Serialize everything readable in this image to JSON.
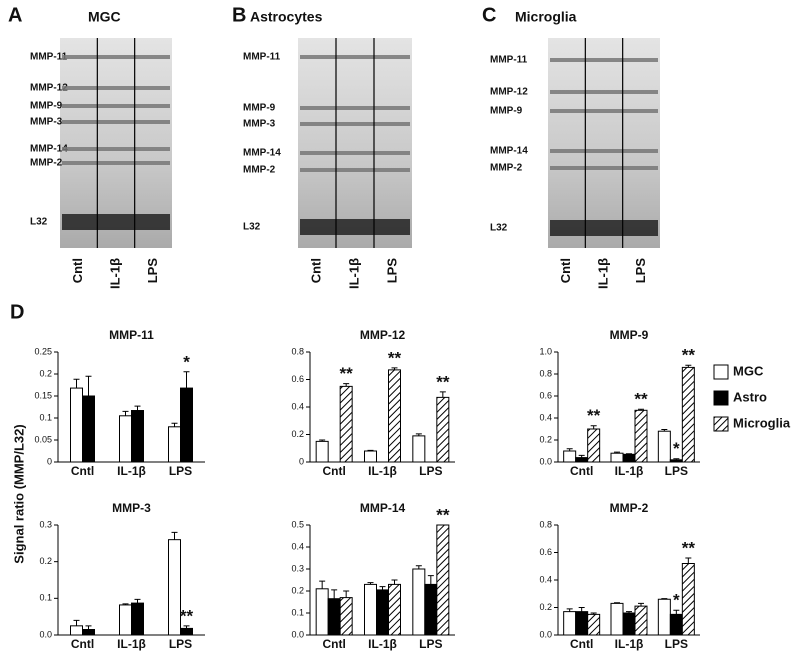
{
  "figure_label": "D",
  "y_axis_label": "Signal ratio (MMP/L32)",
  "gels": [
    {
      "letter": "A",
      "title": "MGC",
      "bands": [
        "MMP-11",
        "MMP-12",
        "MMP-9",
        "MMP-3",
        "MMP-14",
        "MMP-2",
        "L32"
      ],
      "lanes": [
        "Cntl",
        "IL-1β",
        "LPS"
      ]
    },
    {
      "letter": "B",
      "title": "Astrocytes",
      "bands": [
        "MMP-11",
        "MMP-9",
        "MMP-3",
        "MMP-14",
        "MMP-2",
        "L32"
      ],
      "lanes": [
        "Cntl",
        "IL-1β",
        "LPS"
      ]
    },
    {
      "letter": "C",
      "title": "Microglia",
      "bands": [
        "MMP-11",
        "MMP-12",
        "MMP-9",
        "MMP-14",
        "MMP-2",
        "L32"
      ],
      "lanes": [
        "Cntl",
        "IL-1β",
        "LPS"
      ]
    }
  ],
  "chart_data": [
    {
      "type": "bar",
      "title": "MMP-11",
      "categories": [
        "Cntl",
        "IL-1β",
        "LPS"
      ],
      "ylim": [
        0,
        0.25
      ],
      "yticks": [
        0,
        0.05,
        0.1,
        0.15,
        0.2,
        0.25
      ],
      "series": [
        {
          "name": "MGC",
          "color": "#ffffff",
          "values": [
            0.168,
            0.105,
            0.08
          ],
          "errors": [
            0.02,
            0.01,
            0.008
          ],
          "significance": [
            null,
            null,
            null
          ]
        },
        {
          "name": "Astro",
          "color": "#000000",
          "values": [
            0.15,
            0.117,
            0.168
          ],
          "errors": [
            0.045,
            0.01,
            0.037
          ],
          "significance": [
            null,
            null,
            "*"
          ]
        }
      ]
    },
    {
      "type": "bar",
      "title": "MMP-12",
      "categories": [
        "Cntl",
        "IL-1β",
        "LPS"
      ],
      "ylim": [
        0,
        0.8
      ],
      "yticks": [
        0,
        0.2,
        0.4,
        0.6,
        0.8
      ],
      "series": [
        {
          "name": "MGC",
          "color": "#ffffff",
          "values": [
            0.15,
            0.08,
            0.19
          ],
          "errors": [
            0.01,
            0.005,
            0.015
          ],
          "significance": [
            null,
            null,
            null
          ]
        },
        {
          "name": "Astro",
          "color": "#000000",
          "values": [
            0,
            0,
            0
          ],
          "errors": [
            0,
            0,
            0
          ],
          "significance": [
            null,
            null,
            null
          ]
        },
        {
          "name": "Microglia",
          "color": "#ffffff",
          "pattern": "hatch",
          "values": [
            0.55,
            0.67,
            0.47
          ],
          "errors": [
            0.02,
            0.015,
            0.04
          ],
          "significance": [
            "**",
            "**",
            "**"
          ]
        }
      ]
    },
    {
      "type": "bar",
      "title": "MMP-9",
      "categories": [
        "Cntl",
        "IL-1β",
        "LPS"
      ],
      "ylim": [
        0,
        1.0
      ],
      "yticks": [
        {
          "value": 0,
          "label": "0.0"
        },
        0.2,
        0.4,
        0.6,
        0.8,
        {
          "value": 1,
          "label": "1.0"
        }
      ],
      "legend": "right",
      "series": [
        {
          "name": "MGC",
          "color": "#ffffff",
          "values": [
            0.1,
            0.08,
            0.28
          ],
          "errors": [
            0.02,
            0.01,
            0.015
          ],
          "significance": [
            null,
            null,
            null
          ]
        },
        {
          "name": "Astro",
          "color": "#000000",
          "values": [
            0.04,
            0.07,
            0.02
          ],
          "errors": [
            0.02,
            0.005,
            0.01
          ],
          "significance": [
            null,
            null,
            "*"
          ]
        },
        {
          "name": "Microglia",
          "color": "#ffffff",
          "pattern": "hatch",
          "values": [
            0.3,
            0.47,
            0.86
          ],
          "errors": [
            0.03,
            0.01,
            0.02
          ],
          "significance": [
            "**",
            "**",
            "**"
          ]
        }
      ]
    },
    {
      "type": "bar",
      "title": "MMP-3",
      "categories": [
        "Cntl",
        "IL-1β",
        "LPS"
      ],
      "ylim": [
        0,
        0.3
      ],
      "yticks": [
        {
          "value": 0,
          "label": "0.0"
        },
        0.1,
        0.2,
        0.3
      ],
      "series": [
        {
          "name": "MGC",
          "color": "#ffffff",
          "values": [
            0.025,
            0.082,
            0.26
          ],
          "errors": [
            0.015,
            0.003,
            0.02
          ],
          "significance": [
            null,
            null,
            null
          ]
        },
        {
          "name": "Astro",
          "color": "#000000",
          "values": [
            0.015,
            0.087,
            0.018
          ],
          "errors": [
            0.01,
            0.01,
            0.007
          ],
          "significance": [
            null,
            null,
            "**"
          ]
        }
      ]
    },
    {
      "type": "bar",
      "title": "MMP-14",
      "categories": [
        "Cntl",
        "IL-1β",
        "LPS"
      ],
      "ylim": [
        0,
        0.5
      ],
      "yticks": [
        {
          "value": 0,
          "label": "0.0"
        },
        0.1,
        0.2,
        0.3,
        0.4,
        0.5
      ],
      "series": [
        {
          "name": "MGC",
          "color": "#ffffff",
          "values": [
            0.21,
            0.23,
            0.3
          ],
          "errors": [
            0.035,
            0.008,
            0.015
          ],
          "significance": [
            null,
            null,
            null
          ]
        },
        {
          "name": "Astro",
          "color": "#000000",
          "values": [
            0.165,
            0.205,
            0.23
          ],
          "errors": [
            0.04,
            0.015,
            0.04
          ],
          "significance": [
            null,
            null,
            null
          ]
        },
        {
          "name": "Microglia",
          "color": "#ffffff",
          "pattern": "hatch",
          "values": [
            0.17,
            0.23,
            0.5
          ],
          "errors": [
            0.03,
            0.02,
            0
          ],
          "significance": [
            null,
            null,
            "**"
          ]
        }
      ]
    },
    {
      "type": "bar",
      "title": "MMP-2",
      "categories": [
        "Cntl",
        "IL-1β",
        "LPS"
      ],
      "ylim": [
        0,
        0.8
      ],
      "yticks": [
        {
          "value": 0,
          "label": "0.0"
        },
        0.2,
        0.4,
        0.6,
        0.8
      ],
      "series": [
        {
          "name": "MGC",
          "color": "#ffffff",
          "values": [
            0.17,
            0.23,
            0.26
          ],
          "errors": [
            0.02,
            0.005,
            0.005
          ],
          "significance": [
            null,
            null,
            null
          ]
        },
        {
          "name": "Astro",
          "color": "#000000",
          "values": [
            0.17,
            0.16,
            0.15
          ],
          "errors": [
            0.03,
            0.01,
            0.03
          ],
          "significance": [
            null,
            null,
            "*"
          ]
        },
        {
          "name": "Microglia",
          "color": "#ffffff",
          "pattern": "hatch",
          "values": [
            0.15,
            0.21,
            0.52
          ],
          "errors": [
            0.01,
            0.02,
            0.04
          ],
          "significance": [
            null,
            null,
            "**"
          ]
        }
      ]
    }
  ]
}
